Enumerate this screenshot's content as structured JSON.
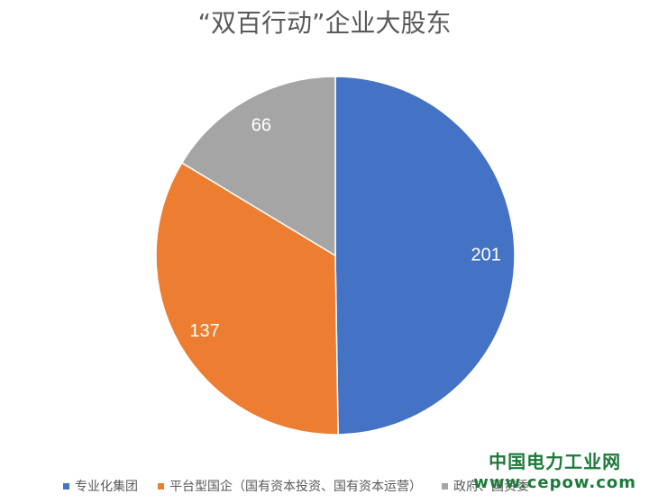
{
  "chart_data": {
    "type": "pie",
    "title": "“双百行动”企业大股东",
    "categories": [
      "专业化集团",
      "平台型国企（国有资本投资、国有资本运营）",
      "政府、国资委"
    ],
    "values": [
      201,
      137,
      66
    ],
    "colors": [
      "#4472c4",
      "#ed7d31",
      "#a5a5a5"
    ],
    "legend_position": "bottom"
  },
  "watermark": {
    "line1": "中国电力工业网",
    "line2": "www.cepow.com"
  }
}
